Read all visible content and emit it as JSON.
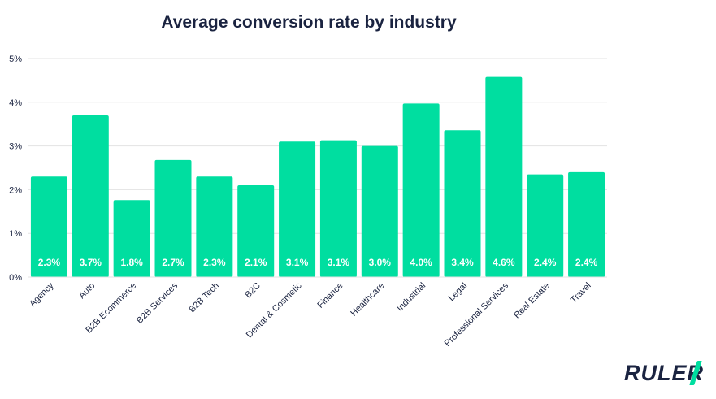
{
  "chart_data": {
    "type": "bar",
    "title": "Average conversion rate by industry",
    "categories": [
      "Agency",
      "Auto",
      "B2B Ecommerce",
      "B2B Services",
      "B2B Tech",
      "B2C",
      "Dental & Cosmetic",
      "Finance",
      "Healthcare",
      "Industrial",
      "Legal",
      "Professional Services",
      "Real Estate",
      "Travel"
    ],
    "values": [
      2.3,
      3.7,
      1.76,
      2.68,
      2.3,
      2.1,
      3.1,
      3.13,
      3.0,
      3.97,
      3.36,
      4.58,
      2.35,
      2.4
    ],
    "data_labels": [
      "2.3%",
      "3.7%",
      "1.8%",
      "2.7%",
      "2.3%",
      "2.1%",
      "3.1%",
      "3.1%",
      "3.0%",
      "4.0%",
      "3.4%",
      "4.6%",
      "2.4%",
      "2.4%"
    ],
    "y_ticks": [
      "0%",
      "1%",
      "2%",
      "3%",
      "4%",
      "5%"
    ],
    "ylim": [
      0,
      5
    ],
    "xlabel": "",
    "ylabel": "",
    "grid": true,
    "colors": {
      "bar": "#00dea0",
      "label": "#ffffff",
      "text": "#1a2340",
      "grid": "#e3e3e3"
    }
  },
  "logo": {
    "text": "RULER"
  }
}
